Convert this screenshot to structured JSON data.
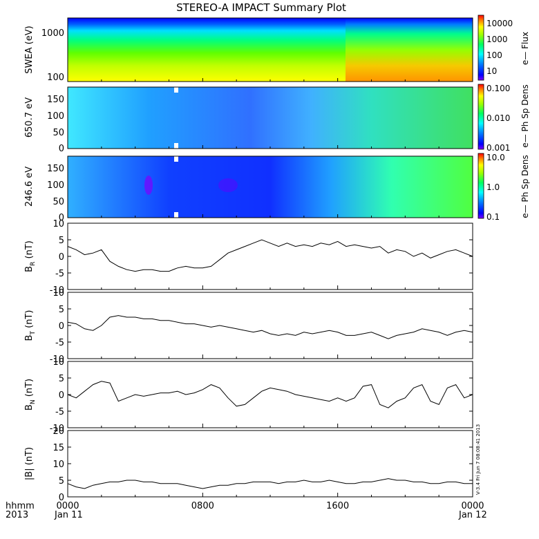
{
  "title": "STEREO-A IMPACT Summary Plot",
  "footer": {
    "time_label": "hhmm",
    "year_label": "2013",
    "start_date": "Jan 11",
    "end_date": "Jan 12",
    "stamp": "V-3.4  Fri Jun  7 08:08:41 2013"
  },
  "time_axis": {
    "min_hour": 0,
    "max_hour": 24,
    "labeled_ticks": [
      {
        "hour": 0,
        "label": "0000"
      },
      {
        "hour": 8,
        "label": "0800"
      },
      {
        "hour": 16,
        "label": "1600"
      },
      {
        "hour": 24,
        "label": "0000"
      }
    ]
  },
  "colorbars": [
    {
      "ticks": [
        "10000",
        "1000",
        "100",
        "10"
      ],
      "label": "e— Flux"
    },
    {
      "ticks": [
        "0.100",
        "0.010",
        "0.001"
      ],
      "label": "e— Ph Sp Dens"
    },
    {
      "ticks": [
        "10.0",
        "1.0",
        "0.1"
      ],
      "label": "e— Ph Sp Dens"
    }
  ],
  "palette": [
    "#ff0000",
    "#ff8000",
    "#ffff00",
    "#80ff00",
    "#00ff00",
    "#00ffc0",
    "#00c0ff",
    "#0040ff",
    "#0000ff",
    "#8000ff"
  ],
  "chart_data": [
    {
      "type": "heatmap",
      "ylabel": "SWEA (eV)",
      "y_scale": "log",
      "y_ticks": [
        "1000",
        "100"
      ],
      "description_values": "e- flux spectrogram, flux increases at low energy; enhanced after ~18h",
      "colorbar_ticks": [
        "10000",
        "1000",
        "100",
        "10"
      ]
    },
    {
      "type": "heatmap",
      "ylabel": "650.7 eV",
      "y_ticks": [
        "150",
        "100",
        "50",
        "0"
      ],
      "colorbar_ticks": [
        "0.100",
        "0.010",
        "0.001"
      ]
    },
    {
      "type": "heatmap",
      "ylabel": "246.6 eV",
      "y_ticks": [
        "150",
        "100",
        "50",
        "0"
      ],
      "colorbar_ticks": [
        "10.0",
        "1.0",
        "0.1"
      ]
    },
    {
      "type": "line",
      "ylabel_main": "B",
      "ylabel_sub": "R",
      "ylabel_unit": " (nT)",
      "ylim": [
        -10,
        10
      ],
      "y_ticks": [
        10,
        5,
        0,
        -5,
        -10
      ],
      "x": [
        0,
        0.5,
        1,
        1.5,
        2,
        2.5,
        3,
        3.5,
        4,
        4.5,
        5,
        5.5,
        6,
        6.5,
        7,
        7.5,
        8,
        8.5,
        9,
        9.5,
        10,
        10.5,
        11,
        11.5,
        12,
        12.5,
        13,
        13.5,
        14,
        14.5,
        15,
        15.5,
        16,
        16.5,
        17,
        17.5,
        18,
        18.5,
        19,
        19.5,
        20,
        20.5,
        21,
        21.5,
        22,
        22.5,
        23,
        23.5,
        24
      ],
      "values": [
        3,
        2,
        0.5,
        1,
        2,
        -1.5,
        -3,
        -4,
        -4.5,
        -4,
        -4,
        -4.5,
        -4.5,
        -3.5,
        -3,
        -3.5,
        -3.5,
        -3,
        -1,
        1,
        2,
        3,
        4,
        5,
        4,
        3,
        4,
        3,
        3.5,
        3,
        4,
        3.5,
        4.5,
        3,
        3.5,
        3,
        2.5,
        3,
        1,
        2,
        1.5,
        0,
        1,
        -0.5,
        0.5,
        1.5,
        2,
        1,
        0
      ]
    },
    {
      "type": "line",
      "ylabel_main": "B",
      "ylabel_sub": "T",
      "ylabel_unit": " (nT)",
      "ylim": [
        -10,
        10
      ],
      "y_ticks": [
        10,
        5,
        0,
        -5,
        -10
      ],
      "x": [
        0,
        0.5,
        1,
        1.5,
        2,
        2.5,
        3,
        3.5,
        4,
        4.5,
        5,
        5.5,
        6,
        6.5,
        7,
        7.5,
        8,
        8.5,
        9,
        9.5,
        10,
        10.5,
        11,
        11.5,
        12,
        12.5,
        13,
        13.5,
        14,
        14.5,
        15,
        15.5,
        16,
        16.5,
        17,
        17.5,
        18,
        18.5,
        19,
        19.5,
        20,
        20.5,
        21,
        21.5,
        22,
        22.5,
        23,
        23.5,
        24
      ],
      "values": [
        1,
        0.5,
        -1,
        -1.5,
        0,
        2.5,
        3,
        2.5,
        2.5,
        2,
        2,
        1.5,
        1.5,
        1,
        0.5,
        0.5,
        0,
        -0.5,
        0,
        -0.5,
        -1,
        -1.5,
        -2,
        -1.5,
        -2.5,
        -3,
        -2.5,
        -3,
        -2,
        -2.5,
        -2,
        -1.5,
        -2,
        -3,
        -3,
        -2.5,
        -2,
        -3,
        -4,
        -3,
        -2.5,
        -2,
        -1,
        -1.5,
        -2,
        -3,
        -2,
        -1.5,
        -2
      ]
    },
    {
      "type": "line",
      "ylabel_main": "B",
      "ylabel_sub": "N",
      "ylabel_unit": " (nT)",
      "ylim": [
        -10,
        10
      ],
      "y_ticks": [
        10,
        5,
        0,
        -5,
        -10
      ],
      "x": [
        0,
        0.5,
        1,
        1.5,
        2,
        2.5,
        3,
        3.5,
        4,
        4.5,
        5,
        5.5,
        6,
        6.5,
        7,
        7.5,
        8,
        8.5,
        9,
        9.5,
        10,
        10.5,
        11,
        11.5,
        12,
        12.5,
        13,
        13.5,
        14,
        14.5,
        15,
        15.5,
        16,
        16.5,
        17,
        17.5,
        18,
        18.5,
        19,
        19.5,
        20,
        20.5,
        21,
        21.5,
        22,
        22.5,
        23,
        23.5,
        24
      ],
      "values": [
        0,
        -1,
        1,
        3,
        4,
        3.5,
        -2,
        -1,
        0,
        -0.5,
        0,
        0.5,
        0.5,
        1,
        0,
        0.5,
        1.5,
        3,
        2,
        -1,
        -3.5,
        -3,
        -1,
        1,
        2,
        1.5,
        1,
        0,
        -0.5,
        -1,
        -1.5,
        -2,
        -1,
        -2,
        -1,
        2.5,
        3,
        -3,
        -4,
        -2,
        -1,
        2,
        3,
        -2,
        -3,
        2,
        3,
        -1,
        0
      ]
    },
    {
      "type": "line",
      "ylabel_main": "|B|",
      "ylabel_sub": "",
      "ylabel_unit": " (nT)",
      "ylim": [
        0,
        20
      ],
      "y_ticks": [
        20,
        15,
        10,
        5,
        0
      ],
      "x": [
        0,
        0.5,
        1,
        1.5,
        2,
        2.5,
        3,
        3.5,
        4,
        4.5,
        5,
        5.5,
        6,
        6.5,
        7,
        7.5,
        8,
        8.5,
        9,
        9.5,
        10,
        10.5,
        11,
        11.5,
        12,
        12.5,
        13,
        13.5,
        14,
        14.5,
        15,
        15.5,
        16,
        16.5,
        17,
        17.5,
        18,
        18.5,
        19,
        19.5,
        20,
        20.5,
        21,
        21.5,
        22,
        22.5,
        23,
        23.5,
        24
      ],
      "values": [
        4,
        3,
        2.5,
        3.5,
        4,
        4.5,
        4.5,
        5,
        5,
        4.5,
        4.5,
        4,
        4,
        4,
        3.5,
        3,
        2.5,
        3,
        3.5,
        3.5,
        4,
        4,
        4.5,
        4.5,
        4.5,
        4,
        4.5,
        4.5,
        5,
        4.5,
        4.5,
        5,
        4.5,
        4,
        4,
        4.5,
        4.5,
        5,
        5.5,
        5,
        5,
        4.5,
        4.5,
        4,
        4,
        4.5,
        4.5,
        4,
        4
      ]
    }
  ]
}
